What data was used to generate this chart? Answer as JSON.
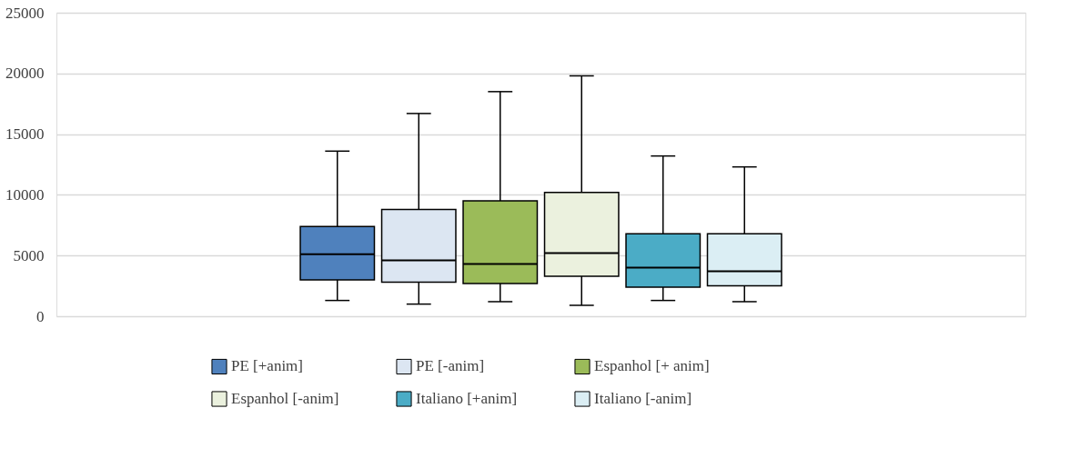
{
  "chart_data": {
    "type": "box",
    "categories": [
      null
    ],
    "ylim": [
      0,
      25000
    ],
    "yticks": [
      0,
      5000,
      10000,
      15000,
      20000,
      25000
    ],
    "grid": "y",
    "legend": "bottom",
    "series": [
      {
        "name": "PE [+anim]",
        "color": "#4f81bd",
        "boxes": [
          {
            "low": 1300,
            "q1": 3000,
            "median": 5100,
            "q3": 7400,
            "high": 13600
          }
        ]
      },
      {
        "name": "PE [-anim]",
        "color": "#dce6f2",
        "boxes": [
          {
            "low": 1000,
            "q1": 2800,
            "median": 4600,
            "q3": 8800,
            "high": 16700
          }
        ]
      },
      {
        "name": "Espanhol [+ anim]",
        "color": "#9bbb59",
        "boxes": [
          {
            "low": 1200,
            "q1": 2700,
            "median": 4300,
            "q3": 9500,
            "high": 18500
          }
        ]
      },
      {
        "name": "Espanhol [-anim]",
        "color": "#ebf1de",
        "boxes": [
          {
            "low": 900,
            "q1": 3300,
            "median": 5200,
            "q3": 10200,
            "high": 19800
          }
        ]
      },
      {
        "name": "Italiano [+anim]",
        "color": "#4bacc6",
        "boxes": [
          {
            "low": 1300,
            "q1": 2400,
            "median": 4000,
            "q3": 6800,
            "high": 13200
          }
        ]
      },
      {
        "name": "Italiano [-anim]",
        "color": "#dbeef4",
        "boxes": [
          {
            "low": 1200,
            "q1": 2500,
            "median": 3700,
            "q3": 6800,
            "high": 12300
          }
        ]
      }
    ]
  }
}
